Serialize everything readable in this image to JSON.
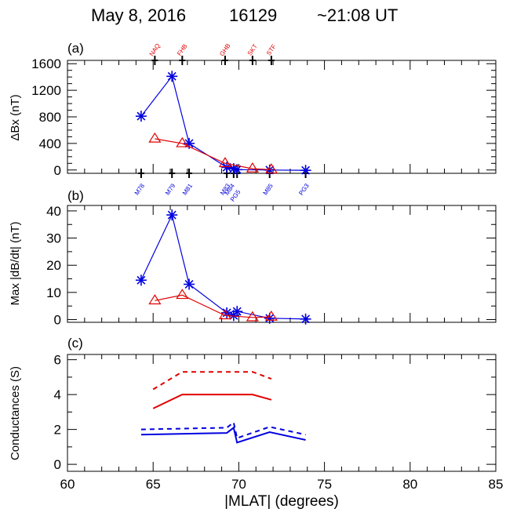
{
  "header": {
    "date": "May 8, 2016",
    "event": "16129",
    "time": "~21:08 UT"
  },
  "colors": {
    "blue": "#0000e0",
    "red": "#e00000",
    "axis": "#000000"
  },
  "x_axis": {
    "label": "|MLAT| (degrees)",
    "range": [
      60,
      85
    ],
    "ticks": [
      "60",
      "65",
      "70",
      "75",
      "80",
      "85"
    ]
  },
  "chart_data": [
    {
      "panel": "(a)",
      "type": "line",
      "ylabel": "ΔBx (nT)",
      "ylim": [
        -50,
        1650
      ],
      "yticks": [
        "0",
        "400",
        "800",
        "1200",
        "1600"
      ],
      "top_stations": {
        "color": "red",
        "labels": [
          "NAQ",
          "FHB",
          "GHB",
          "SKT",
          "STF"
        ],
        "mlat": [
          65.1,
          66.7,
          69.2,
          70.8,
          71.9
        ]
      },
      "bottom_stations": {
        "color": "blue",
        "labels": [
          "M78",
          "M79",
          "M81",
          "M83",
          "M84",
          "PG5",
          "M85",
          "PG3"
        ],
        "mlat": [
          64.3,
          66.1,
          67.1,
          69.3,
          69.7,
          69.9,
          71.8,
          73.9
        ]
      },
      "series": [
        {
          "color": "blue",
          "marker": "asterisk",
          "x": [
            64.3,
            66.1,
            67.1,
            69.3,
            69.7,
            69.9,
            71.8,
            73.9
          ],
          "y": [
            810,
            1410,
            400,
            40,
            20,
            5,
            0,
            -5
          ]
        },
        {
          "color": "red",
          "marker": "triangle",
          "x": [
            65.1,
            66.7,
            69.2,
            70.8,
            71.9
          ],
          "y": [
            470,
            400,
            100,
            20,
            5
          ]
        }
      ]
    },
    {
      "panel": "(b)",
      "type": "line",
      "ylabel": "Max |dB/dt| (nT)",
      "ylim": [
        -1,
        42
      ],
      "yticks": [
        "0",
        "10",
        "20",
        "30",
        "40"
      ],
      "series": [
        {
          "color": "blue",
          "marker": "asterisk",
          "x": [
            64.3,
            66.1,
            67.1,
            69.3,
            69.7,
            69.9,
            71.8,
            73.9
          ],
          "y": [
            14.5,
            38.5,
            13,
            2.5,
            1.5,
            3,
            0.5,
            0.2
          ]
        },
        {
          "color": "red",
          "marker": "triangle",
          "x": [
            65.1,
            66.7,
            69.2,
            70.8,
            71.9
          ],
          "y": [
            7,
            9,
            1.5,
            0.8,
            1
          ]
        }
      ]
    },
    {
      "panel": "(c)",
      "type": "line",
      "ylabel": "Conductances (S)",
      "ylim": [
        -0.4,
        6.3
      ],
      "yticks": [
        "0",
        "2",
        "4",
        "6"
      ],
      "series": [
        {
          "color": "red",
          "style": "dashed",
          "x": [
            65.0,
            66.7,
            70.8,
            71.9
          ],
          "y": [
            4.3,
            5.3,
            5.3,
            4.9
          ]
        },
        {
          "color": "red",
          "style": "solid",
          "x": [
            65.0,
            66.7,
            70.8,
            71.9
          ],
          "y": [
            3.2,
            4.0,
            4.0,
            3.7
          ]
        },
        {
          "color": "blue",
          "style": "dashed",
          "x": [
            64.3,
            69.3,
            69.7,
            69.9,
            71.8,
            73.9
          ],
          "y": [
            2.0,
            2.1,
            2.4,
            1.5,
            2.15,
            1.7
          ]
        },
        {
          "color": "blue",
          "style": "solid",
          "x": [
            64.3,
            69.3,
            69.7,
            69.9,
            71.8,
            73.9
          ],
          "y": [
            1.7,
            1.8,
            2.1,
            1.25,
            1.85,
            1.4
          ]
        }
      ]
    }
  ]
}
